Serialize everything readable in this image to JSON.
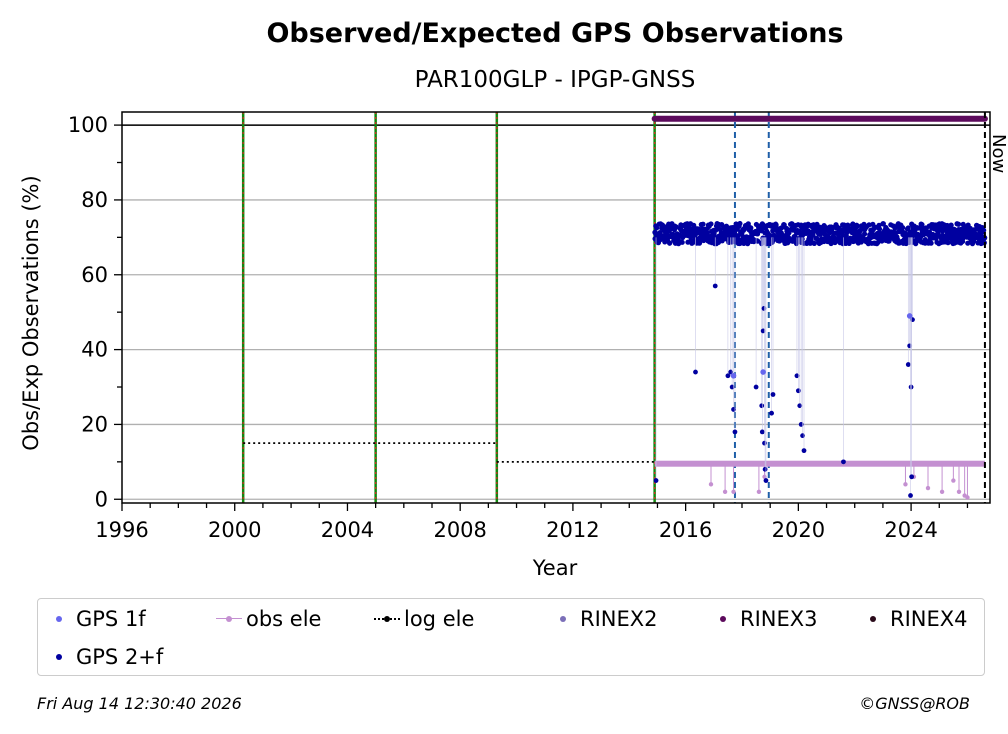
{
  "chart_data": {
    "type": "scatter",
    "title": "Observed/Expected GPS Observations",
    "subtitle": "PAR100GLP - IPGP-GNSS",
    "xlabel": "Year",
    "ylabel": "Obs/Exp Observations (%)",
    "xlim": [
      1996.0,
      2026.8
    ],
    "ylim": [
      -1,
      103.5
    ],
    "xticks": [
      1996,
      2000,
      2004,
      2008,
      2012,
      2016,
      2020,
      2024
    ],
    "yticks": [
      0,
      20,
      40,
      60,
      80,
      100
    ],
    "grid": "horizontal",
    "reference_line_y": 100,
    "now_label": "Now",
    "now_x": 2026.62,
    "event_lines": [
      {
        "type": "equipment-change",
        "x": 2000.3
      },
      {
        "type": "equipment-change",
        "x": 2005.0
      },
      {
        "type": "equipment-change",
        "x": 2009.3
      },
      {
        "type": "equipment-change",
        "x": 2014.9
      },
      {
        "type": "receiver-change",
        "x": 2017.75
      },
      {
        "type": "receiver-change",
        "x": 2018.95
      }
    ],
    "log_ele": [
      {
        "x_start": 2000.3,
        "x_end": 2009.3,
        "y": 15
      },
      {
        "x_start": 2009.3,
        "x_end": 2026.62,
        "y": 10
      }
    ],
    "rinex_bars": [
      {
        "name": "RINEX3",
        "x_start": 2014.9,
        "x_end": 2026.62,
        "y": 101.7
      }
    ],
    "series": [
      {
        "name": "GPS 1f",
        "color": "#6666ee",
        "x": [
          2017.7,
          2018.75,
          2023.95
        ],
        "y": [
          33,
          34,
          49
        ]
      },
      {
        "name": "obs ele",
        "color": "#c490d1",
        "band_y": 9.5,
        "band_x": [
          2014.9,
          2026.62
        ],
        "x": [
          2016.9,
          2017.4,
          2017.7,
          2018.6,
          2018.8,
          2023.8,
          2024.1,
          2024.6,
          2025.1,
          2025.5,
          2025.7,
          2025.9,
          2026.0
        ],
        "y": [
          4,
          2,
          2,
          2,
          6,
          4,
          6,
          3,
          2,
          5,
          2,
          1,
          0.5
        ]
      },
      {
        "name": "GPS 2+f",
        "color": "#0000a0",
        "band": {
          "x_start": 2014.9,
          "x_end": 2026.62,
          "y_low": 67,
          "y_high": 75
        },
        "x": [
          2014.95,
          2016.35,
          2017.05,
          2017.5,
          2017.6,
          2017.65,
          2017.7,
          2017.75,
          2018.5,
          2018.7,
          2018.72,
          2018.75,
          2018.78,
          2018.8,
          2018.82,
          2018.85,
          2019.05,
          2019.1,
          2019.95,
          2020.0,
          2020.05,
          2020.1,
          2020.15,
          2020.2,
          2021.6,
          2023.9,
          2023.95,
          2024.0,
          2024.05,
          2023.98,
          2024.02
        ],
        "y": [
          5,
          34,
          57,
          33,
          34,
          30,
          24,
          18,
          30,
          25,
          18,
          45,
          51,
          15,
          8,
          5,
          23,
          28,
          33,
          29,
          25,
          20,
          17,
          13,
          10,
          36,
          41,
          30,
          48,
          1,
          6
        ]
      },
      {
        "name": "log ele",
        "color": "#000000"
      },
      {
        "name": "RINEX2",
        "color": "#7b6fb8"
      },
      {
        "name": "RINEX3",
        "color": "#5c0a5c"
      },
      {
        "name": "RINEX4",
        "color": "#2a0a1a"
      }
    ]
  },
  "legend": [
    {
      "label": "GPS 1f",
      "kind": "dot",
      "color": "#6666ee"
    },
    {
      "label": "obs ele",
      "kind": "line-dot",
      "color": "#c490d1"
    },
    {
      "label": "log ele",
      "kind": "dotted-dot",
      "color": "#000000"
    },
    {
      "label": "RINEX2",
      "kind": "dot",
      "color": "#7b6fb8"
    },
    {
      "label": "RINEX3",
      "kind": "dot",
      "color": "#5c0a5c"
    },
    {
      "label": "RINEX4",
      "kind": "dot",
      "color": "#2a0a1a"
    },
    {
      "label": "GPS 2+f",
      "kind": "dot",
      "color": "#0000a0"
    }
  ],
  "footer": {
    "timestamp": "Fri Aug 14 12:30:40 2026",
    "credit": "©GNSS@ROB"
  }
}
